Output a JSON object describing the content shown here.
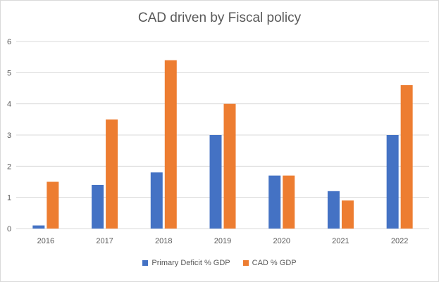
{
  "chart_data": {
    "type": "bar",
    "title": "CAD driven by Fiscal policy",
    "categories": [
      "2016",
      "2017",
      "2018",
      "2019",
      "2020",
      "2021",
      "2022"
    ],
    "series": [
      {
        "name": "Primary Deficit % GDP",
        "color": "#4472c4",
        "values": [
          0.1,
          1.4,
          1.8,
          3.0,
          1.7,
          1.2,
          3.0
        ]
      },
      {
        "name": "CAD % GDP",
        "color": "#ed7d31",
        "values": [
          1.5,
          3.5,
          5.4,
          4.0,
          1.7,
          0.9,
          4.6
        ]
      }
    ],
    "yticks": [
      "0",
      "1",
      "2",
      "3",
      "4",
      "5",
      "6"
    ],
    "ylim": [
      0,
      6
    ],
    "xlabel": "",
    "ylabel": "",
    "grid": true,
    "legend": "bottom"
  }
}
